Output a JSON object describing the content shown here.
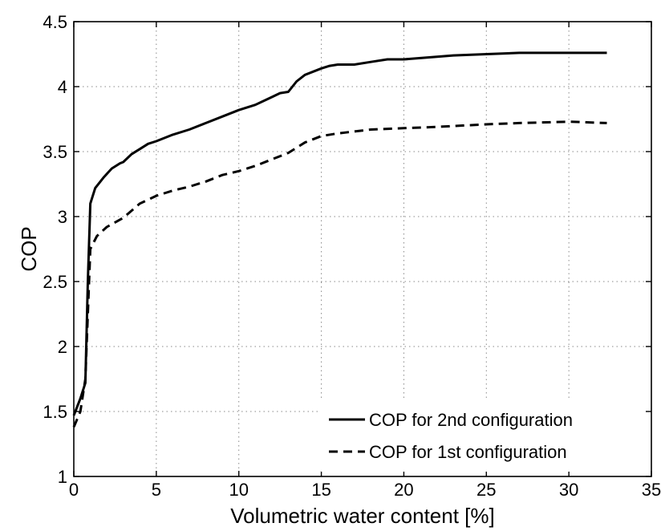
{
  "chart_data": {
    "type": "line",
    "title": "",
    "xlabel": "Volumetric water content [%]",
    "ylabel": "COP",
    "xlim": [
      0,
      35
    ],
    "ylim": [
      1,
      4.5
    ],
    "xticks": [
      0,
      5,
      10,
      15,
      20,
      25,
      30,
      35
    ],
    "yticks": [
      1,
      1.5,
      2,
      2.5,
      3,
      3.5,
      4,
      4.5
    ],
    "xtick_labels": [
      "0",
      "5",
      "10",
      "15",
      "20",
      "25",
      "30",
      "35"
    ],
    "ytick_labels": [
      "1",
      "1.5",
      "2",
      "2.5",
      "3",
      "3.5",
      "4",
      "4.5"
    ],
    "grid": true,
    "legend_position": "bottom-right",
    "series": [
      {
        "name": "COP for 2nd configuration",
        "style": "solid",
        "color": "#000000",
        "x": [
          0,
          0.4,
          0.7,
          0.85,
          1.0,
          1.3,
          1.8,
          2.3,
          2.8,
          3.0,
          3.5,
          4.0,
          4.5,
          5.0,
          6.0,
          7.0,
          8.0,
          9.0,
          10.0,
          11.0,
          12.0,
          12.5,
          13.0,
          13.5,
          14.0,
          15.0,
          15.5,
          16.0,
          17.0,
          18.0,
          19.0,
          20.0,
          21.0,
          22.0,
          23.0,
          25.0,
          27.0,
          30.0,
          32.3
        ],
        "y": [
          1.47,
          1.6,
          1.72,
          2.5,
          3.1,
          3.22,
          3.3,
          3.37,
          3.41,
          3.42,
          3.48,
          3.52,
          3.56,
          3.58,
          3.63,
          3.67,
          3.72,
          3.77,
          3.82,
          3.86,
          3.92,
          3.95,
          3.96,
          4.04,
          4.09,
          4.14,
          4.16,
          4.17,
          4.17,
          4.19,
          4.21,
          4.21,
          4.22,
          4.23,
          4.24,
          4.25,
          4.26,
          4.26,
          4.26
        ]
      },
      {
        "name": "COP for 1st configuration",
        "style": "dashed",
        "color": "#000000",
        "x": [
          0,
          0.4,
          0.7,
          1.0,
          1.4,
          2.0,
          3.0,
          4.0,
          5.0,
          6.0,
          7.0,
          8.0,
          9.0,
          10.0,
          11.0,
          12.0,
          13.0,
          14.0,
          15.0,
          16.0,
          18.0,
          20.0,
          22.0,
          25.0,
          27.0,
          30.0,
          32.3
        ],
        "y": [
          1.38,
          1.5,
          1.75,
          2.75,
          2.85,
          2.92,
          2.99,
          3.1,
          3.16,
          3.2,
          3.23,
          3.27,
          3.32,
          3.35,
          3.39,
          3.44,
          3.49,
          3.57,
          3.62,
          3.64,
          3.67,
          3.68,
          3.69,
          3.71,
          3.72,
          3.73,
          3.72
        ]
      }
    ]
  }
}
